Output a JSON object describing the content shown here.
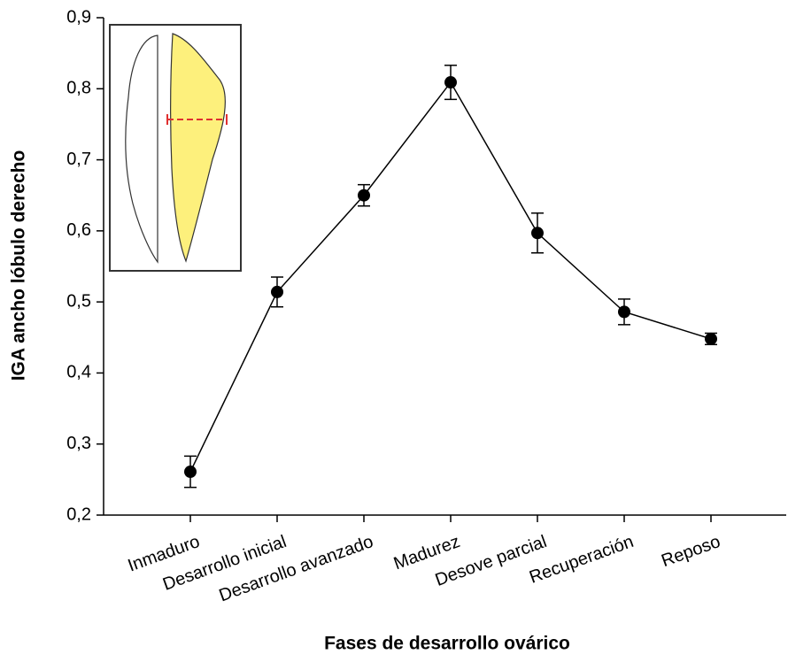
{
  "chart_data": {
    "type": "line",
    "xlabel": "Fases de desarrollo ovárico",
    "ylabel": "IGA ancho lóbulo derecho",
    "categories": [
      "Inmaduro",
      "Desarrollo inicial",
      "Desarrollo avanzado",
      "Madurez",
      "Desove parcial",
      "Recuperación",
      "Reposo"
    ],
    "series": [
      {
        "color": "#000000",
        "values": [
          0.261,
          0.514,
          0.65,
          0.809,
          0.597,
          0.486,
          0.448
        ],
        "errors": [
          0.022,
          0.021,
          0.015,
          0.024,
          0.028,
          0.018,
          0.008
        ]
      }
    ],
    "ylim": [
      0.2,
      0.9
    ],
    "yticks": [
      {
        "value": 0.2,
        "label": "0,2"
      },
      {
        "value": 0.3,
        "label": "0,3"
      },
      {
        "value": 0.4,
        "label": "0,4"
      },
      {
        "value": 0.5,
        "label": "0,5"
      },
      {
        "value": 0.6,
        "label": "0,6"
      },
      {
        "value": 0.7,
        "label": "0,7"
      },
      {
        "value": 0.8,
        "label": "0,8"
      },
      {
        "value": 0.9,
        "label": "0,9"
      }
    ]
  }
}
